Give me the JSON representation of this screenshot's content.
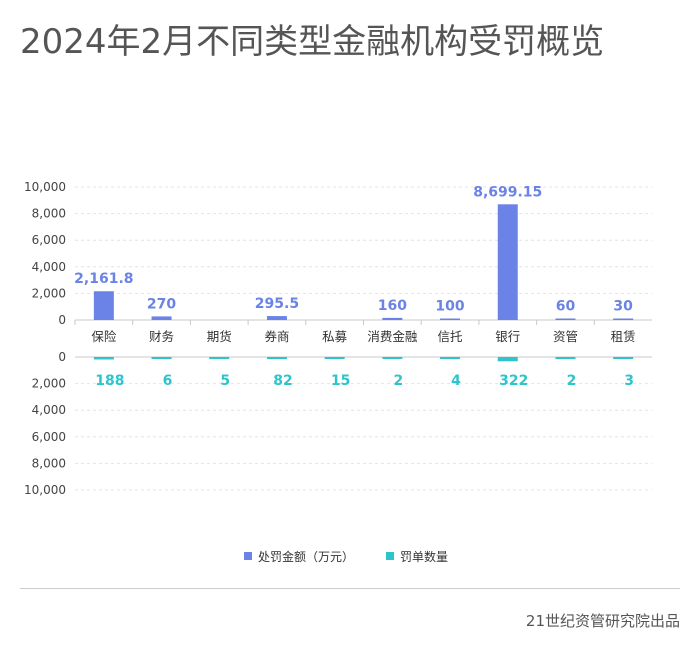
{
  "title": "2024年2月不同类型金融机构受罚概览",
  "source": "21世纪资管研究院出品",
  "colors": {
    "amount": "#6b83e6",
    "count": "#2ec4cc"
  },
  "chart_data": {
    "type": "bar",
    "categories": [
      "保险",
      "财务",
      "期货",
      "券商",
      "私募",
      "消费金融",
      "信托",
      "银行",
      "资管",
      "租赁"
    ],
    "series": [
      {
        "name": "处罚金额（万元）",
        "values": [
          2161.8,
          270,
          0,
          295.5,
          0,
          160,
          100,
          8699.15,
          60,
          30
        ],
        "labels": [
          "2,161.8",
          "270",
          "",
          "295.5",
          "",
          "160",
          "100",
          "8,699.15",
          "60",
          "30"
        ]
      },
      {
        "name": "罚单数量",
        "values": [
          188,
          6,
          5,
          82,
          15,
          2,
          4,
          322,
          2,
          3
        ],
        "labels": [
          "188",
          "6",
          "5",
          "82",
          "15",
          "2",
          "4",
          "322",
          "2",
          "3"
        ]
      }
    ],
    "top_axis": {
      "ylim": [
        0,
        10000
      ],
      "ticks": [
        "0",
        "2,000",
        "4,000",
        "6,000",
        "8,000",
        "10,000"
      ]
    },
    "bottom_axis": {
      "ylim": [
        0,
        10000
      ],
      "inverted": true,
      "ticks": [
        "0",
        "2,000",
        "4,000",
        "6,000",
        "8,000",
        "10,000"
      ]
    },
    "legend_position": "bottom-center",
    "grid": true
  }
}
